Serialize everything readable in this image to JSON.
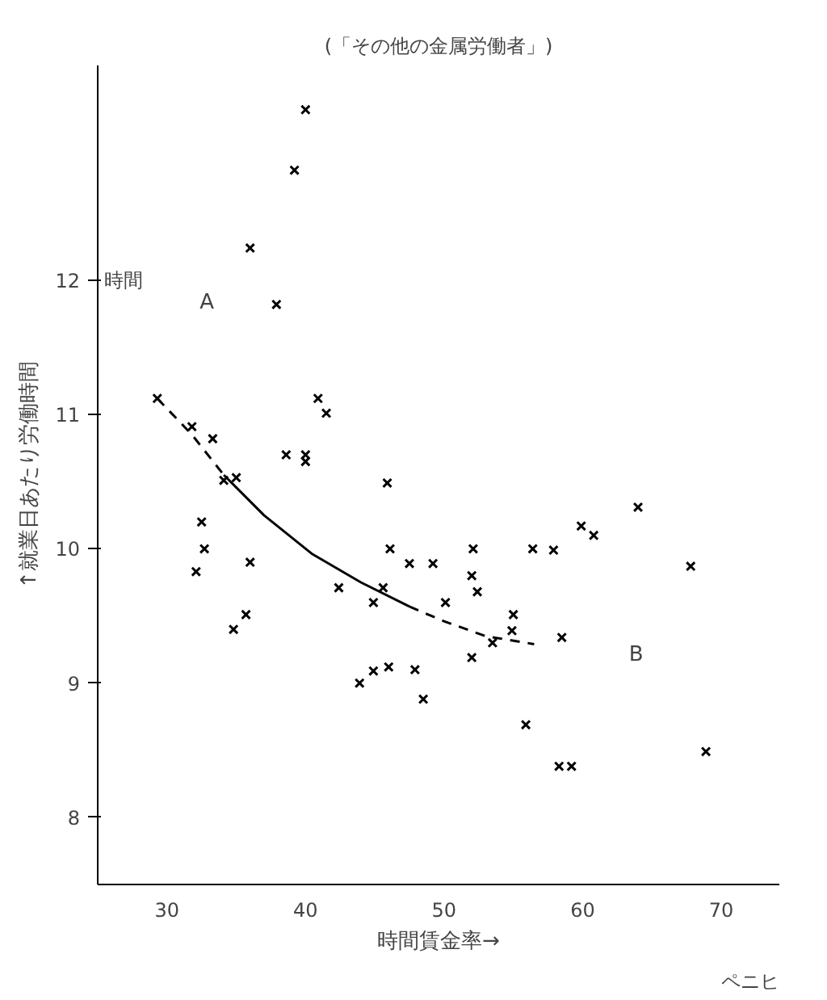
{
  "chart_data": {
    "type": "scatter",
    "title": "(「その他の金属労働者」)",
    "xlabel": "時間賃金率→",
    "ylabel": "↑就業日あたり労働時間",
    "annotations": [
      "時間",
      "ペニヒ",
      "A",
      "B"
    ],
    "xlim": [
      25,
      74.2
    ],
    "ylim": [
      7.5,
      13.6
    ],
    "xticks": [
      30,
      40,
      50,
      60,
      70
    ],
    "yticks": [
      8,
      9,
      10,
      11,
      12
    ],
    "grid": false,
    "series": [
      {
        "marker": "cross",
        "color": "#000000",
        "x": [
          40.0,
          39.2,
          36.0,
          37.9,
          29.3,
          31.8,
          33.3,
          34.1,
          35.0,
          32.5,
          32.7,
          32.1,
          36.0,
          35.7,
          34.8,
          40.9,
          41.5,
          38.6,
          40.0,
          40.0,
          45.9,
          46.1,
          42.4,
          45.6,
          44.9,
          43.9,
          44.9,
          46.0,
          49.2,
          47.5,
          52.1,
          52.0,
          52.4,
          50.1,
          55.0,
          54.9,
          53.5,
          52.0,
          47.9,
          48.5,
          55.9,
          56.4,
          57.9,
          59.9,
          60.8,
          64.0,
          67.8,
          58.5,
          58.3,
          59.2,
          68.9
        ],
        "values": [
          13.27,
          12.82,
          12.24,
          11.82,
          11.12,
          10.91,
          10.82,
          10.51,
          10.53,
          10.2,
          10.0,
          9.83,
          9.9,
          9.51,
          9.4,
          11.12,
          11.01,
          10.7,
          10.7,
          10.65,
          10.49,
          10.0,
          9.71,
          9.71,
          9.6,
          9.0,
          9.09,
          9.12,
          9.89,
          9.89,
          10.0,
          9.8,
          9.68,
          9.6,
          9.51,
          9.39,
          9.3,
          9.19,
          9.1,
          8.88,
          8.69,
          10.0,
          9.99,
          10.17,
          10.1,
          10.31,
          9.87,
          9.34,
          8.38,
          8.38,
          8.49
        ]
      },
      {
        "type": "line",
        "line_style": "dashed",
        "color": "#000000",
        "x": [
          29.3,
          31.8,
          34.1
        ],
        "values": [
          11.12,
          10.85,
          10.55
        ]
      },
      {
        "type": "line",
        "line_style": "solid",
        "color": "#000000",
        "x": [
          34.1,
          37.0,
          40.5,
          44.0,
          47.5
        ],
        "values": [
          10.55,
          10.25,
          9.96,
          9.75,
          9.57
        ]
      },
      {
        "type": "line",
        "line_style": "dashed",
        "color": "#000000",
        "x": [
          47.5,
          50.0,
          53.0,
          56.5
        ],
        "values": [
          9.57,
          9.46,
          9.35,
          9.29
        ]
      }
    ]
  }
}
